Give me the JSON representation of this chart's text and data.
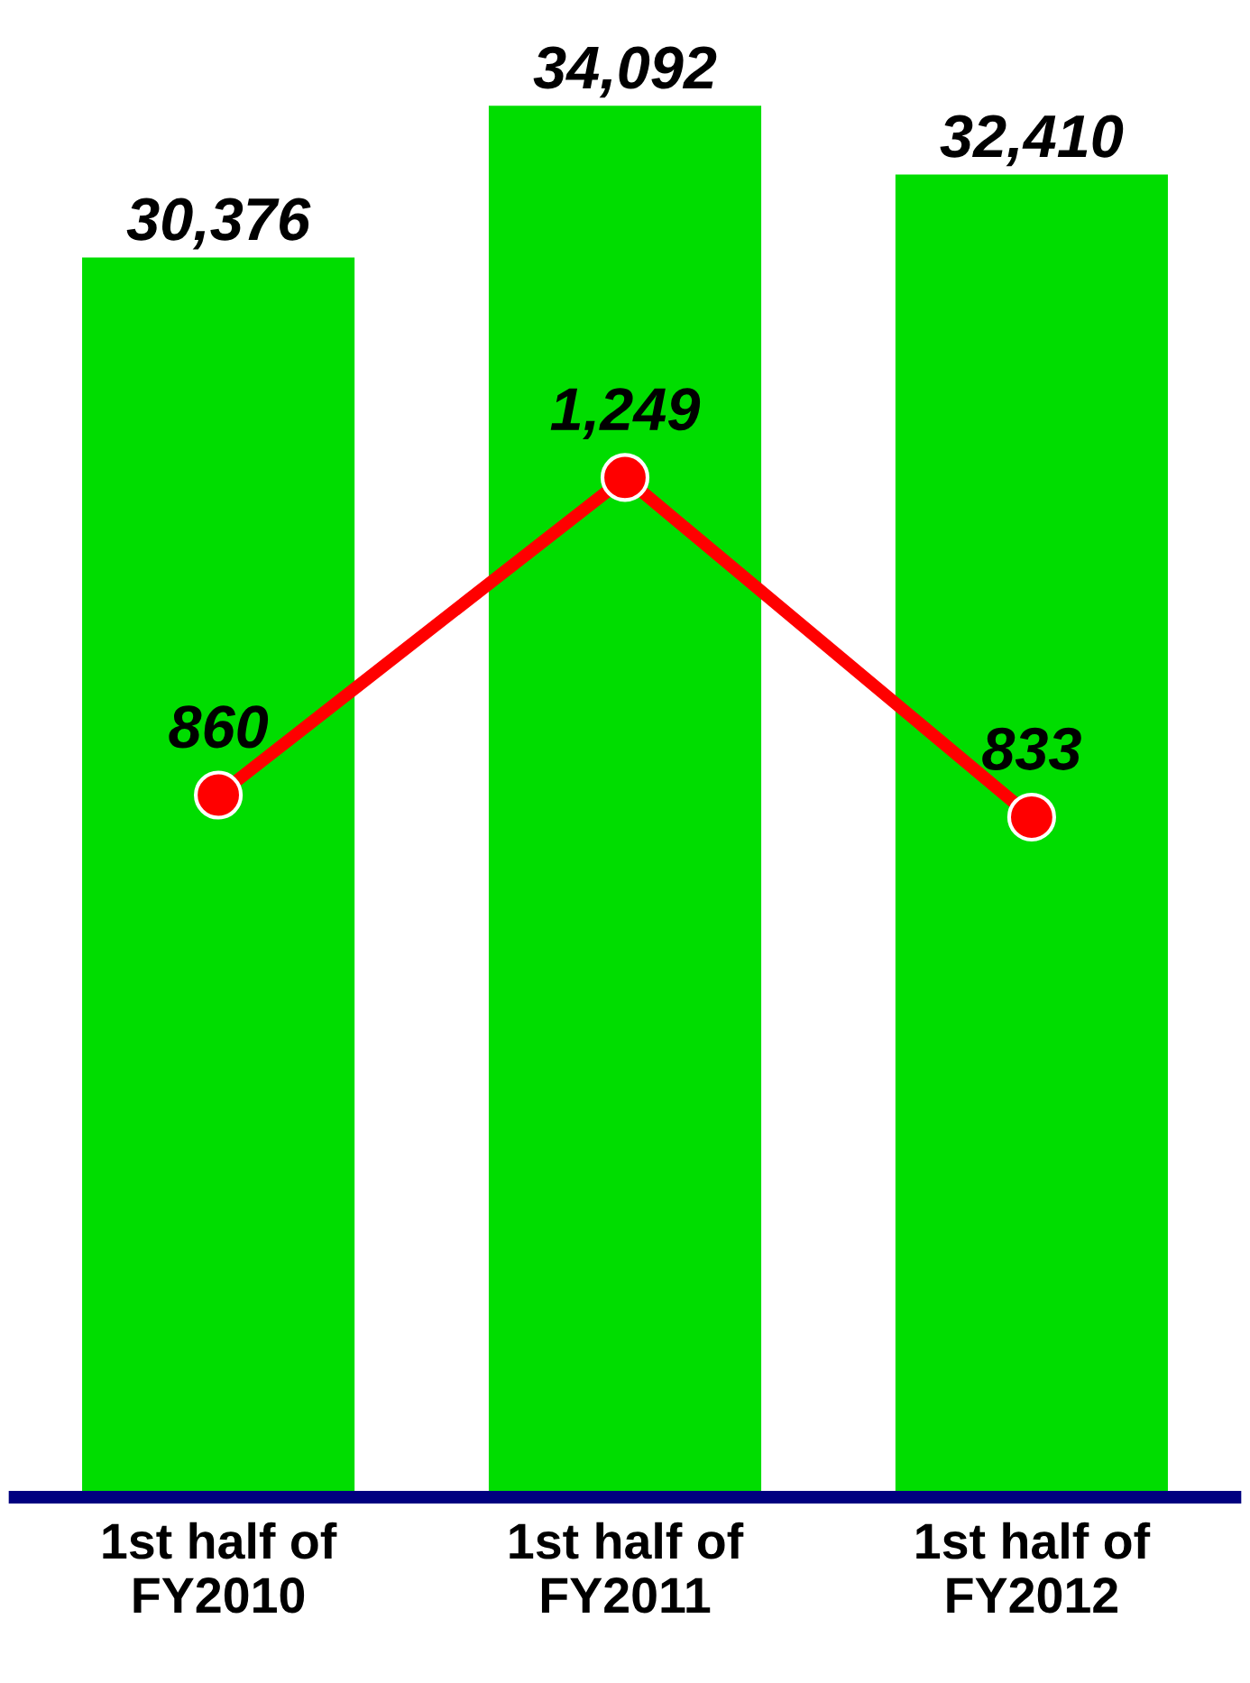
{
  "chart_data": {
    "type": "bar",
    "categories": [
      "1st half of\nFY2010",
      "1st half of\nFY2011",
      "1st half of\nFY2012"
    ],
    "series": [
      {
        "color": "#00dd00",
        "values": [
          30376,
          34092,
          32410
        ],
        "value_labels": [
          "30,376",
          "34,092",
          "32,410"
        ]
      },
      {
        "type": "line",
        "axis": "y2",
        "color": "#ff0000",
        "values": [
          860,
          1249,
          833
        ],
        "value_labels": [
          "860",
          "1,249",
          "833"
        ]
      }
    ],
    "marker": "circle",
    "line_style": "solid",
    "tick_labels": "x"
  }
}
